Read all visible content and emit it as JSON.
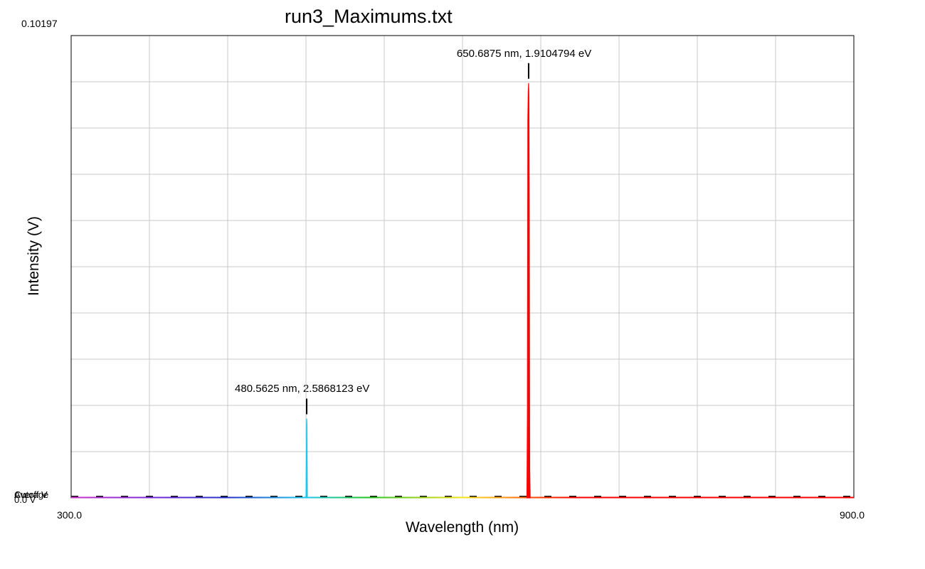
{
  "chart_data": {
    "type": "line",
    "title": "run3_Maximums.txt",
    "xlabel": "Wavelength (nm)",
    "ylabel": "Intensity (V)",
    "xlim": [
      300.0,
      900.0
    ],
    "ylim": [
      0.0,
      0.10197
    ],
    "x_tick_labels": [
      "300.0",
      "900.0"
    ],
    "y_max_label": "0.10197",
    "grid": true,
    "legend_labels": [
      "Cutoff V",
      "Average",
      "0.0 V"
    ],
    "cutoff_value": 0.0003,
    "peak_annotations": [
      {
        "text": "480.5625 nm, 2.5868123 eV",
        "x": 480.5625,
        "y": 0.0175
      },
      {
        "text": "650.6875 nm, 1.9104794 eV",
        "x": 650.6875,
        "y": 0.0915
      }
    ],
    "series": [
      {
        "color": "#1ec8ee",
        "x": [
          480.0,
          480.3,
          480.5625,
          480.8,
          481.1
        ],
        "y": [
          0.0,
          0.0085,
          0.0175,
          0.016,
          0.0
        ]
      },
      {
        "color": "#ff0000",
        "x": [
          649.4,
          649.8,
          650.1,
          650.4,
          650.6875,
          650.9,
          651.2,
          651.5,
          651.9
        ],
        "y": [
          0.0,
          0.0195,
          0.083,
          0.0895,
          0.0915,
          0.0885,
          0.0655,
          0.0065,
          0.0
        ]
      }
    ],
    "colors": {
      "gridline": "#c8c8c8",
      "border": "#000000",
      "cutoff_dash": "#000000"
    }
  }
}
